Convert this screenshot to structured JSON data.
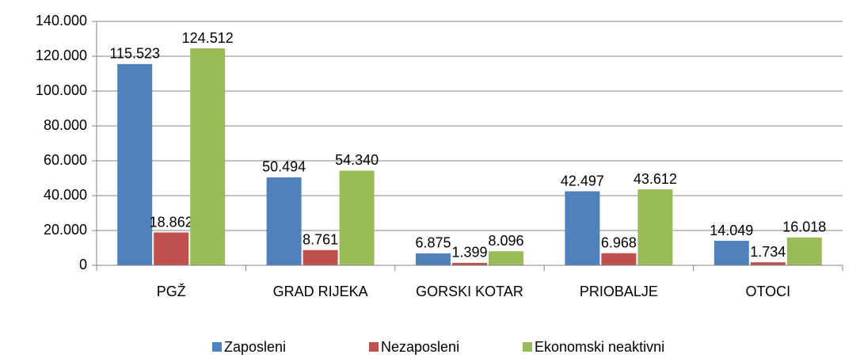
{
  "chart_data": {
    "type": "bar",
    "categories": [
      "PGŽ",
      "GRAD RIJEKA",
      "GORSKI KOTAR",
      "PRIOBALJE",
      "OTOCI"
    ],
    "series": [
      {
        "name": "Zaposleni",
        "color": "#4f81bd",
        "values": [
          115523,
          50494,
          6875,
          42497,
          14049
        ],
        "value_labels": [
          "115.523",
          "50.494",
          "6.875",
          "42.497",
          "14.049"
        ]
      },
      {
        "name": "Nezaposleni",
        "color": "#c0504d",
        "values": [
          18862,
          8761,
          1399,
          6968,
          1734
        ],
        "value_labels": [
          "18.862",
          "8.761",
          "1.399",
          "6.968",
          "1.734"
        ]
      },
      {
        "name": "Ekonomski neaktivni",
        "color": "#9bbb59",
        "values": [
          124512,
          54340,
          8096,
          43612,
          16018
        ],
        "value_labels": [
          "124.512",
          "54.340",
          "8.096",
          "43.612",
          "16.018"
        ]
      }
    ],
    "ylim": [
      0,
      140000
    ],
    "yticks": [
      0,
      {
        "value": 20000,
        "label": "20.000"
      },
      {
        "value": 40000,
        "label": "40.000"
      },
      {
        "value": 60000,
        "label": "60.000"
      },
      {
        "value": 80000,
        "label": "80.000"
      },
      {
        "value": 100000,
        "label": "100.000"
      },
      {
        "value": 120000,
        "label": "120.000"
      },
      {
        "value": 140000,
        "label": "140.000"
      }
    ],
    "grid": true,
    "legend": "bottom"
  }
}
